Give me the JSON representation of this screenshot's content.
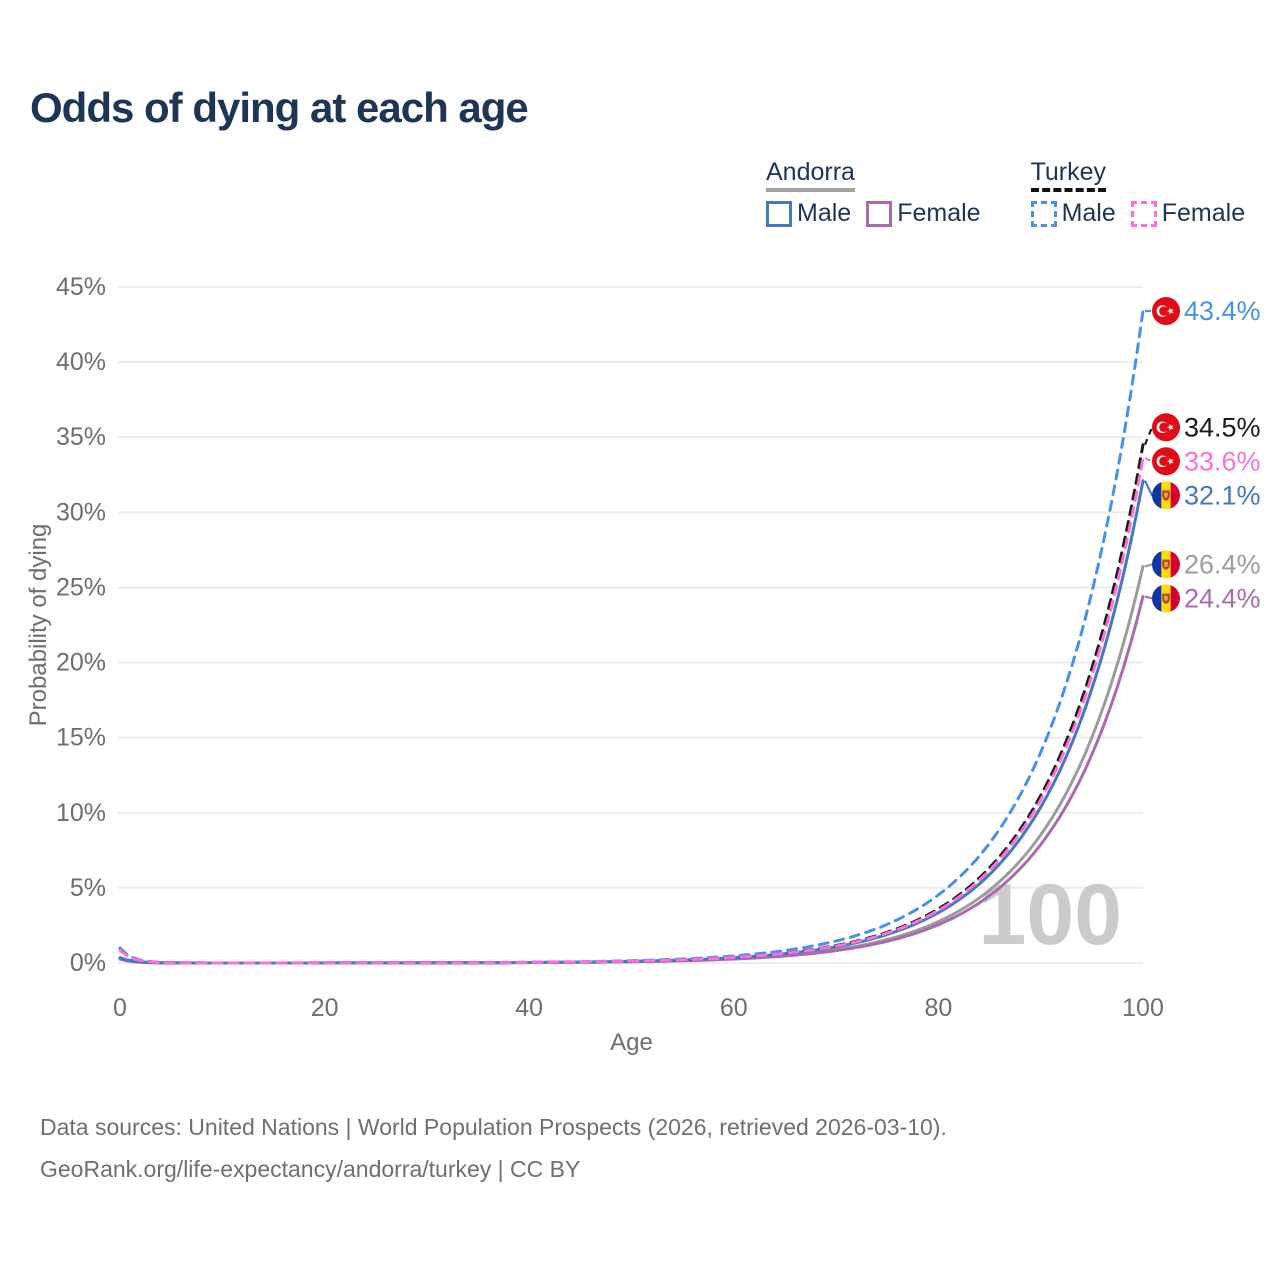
{
  "chart_data": {
    "type": "line",
    "title": "Odds of dying at each age",
    "xlabel": "Age",
    "ylabel": "Probability of dying",
    "x_ticks": [
      "0",
      "20",
      "40",
      "60",
      "80",
      "100"
    ],
    "y_ticks": [
      "0%",
      "5%",
      "10%",
      "15%",
      "20%",
      "25%",
      "30%",
      "35%",
      "40%",
      "45%"
    ],
    "xlim": [
      0,
      100
    ],
    "ylim": [
      0,
      45
    ],
    "grid": "horizontal",
    "legend_position": "top-right",
    "watermark": "100",
    "x": [
      0,
      5,
      10,
      15,
      20,
      25,
      30,
      35,
      40,
      45,
      50,
      55,
      60,
      65,
      70,
      75,
      80,
      85,
      90,
      95,
      100
    ],
    "series": [
      {
        "id": "andorra",
        "name": "Andorra",
        "country": "Andorra",
        "flag": "andorra",
        "color": "#9c9c9c",
        "dash": false,
        "end_label": "26.4%",
        "values_pct": [
          0.3,
          0.006,
          0.001,
          0.0018,
          0.0031,
          0.0055,
          0.0097,
          0.017,
          0.03,
          0.053,
          0.093,
          0.163,
          0.287,
          0.505,
          0.889,
          1.565,
          2.755,
          4.848,
          8.528,
          15.004,
          26.4
        ]
      },
      {
        "id": "andorra-female",
        "name": "Andorra Female",
        "country": "Andorra",
        "flag": "andorra",
        "color": "#aa6bae",
        "dash": false,
        "end_label": "24.4%",
        "values_pct": [
          0.25,
          0.005,
          0.0009,
          0.0016,
          0.0029,
          0.0051,
          0.0089,
          0.0157,
          0.028,
          0.049,
          0.086,
          0.151,
          0.265,
          0.467,
          0.822,
          1.447,
          2.547,
          4.48,
          7.882,
          13.868,
          24.4
        ]
      },
      {
        "id": "andorra-male",
        "name": "Andorra Male",
        "country": "Andorra",
        "flag": "andorra",
        "color": "#4478c2",
        "dash": false,
        "end_label": "32.1%",
        "values_pct": [
          0.35,
          0.007,
          0.0012,
          0.0022,
          0.0038,
          0.0067,
          0.0117,
          0.0207,
          0.036,
          0.064,
          0.113,
          0.198,
          0.349,
          0.614,
          1.081,
          1.903,
          3.35,
          5.894,
          10.369,
          18.244,
          32.1
        ]
      },
      {
        "id": "turkey",
        "name": "Turkey",
        "country": "Turkey",
        "flag": "turkey",
        "color": "#1b1b1b",
        "dash": true,
        "end_label": "34.5%",
        "values_pct": [
          0.95,
          0.016,
          0.0013,
          0.0023,
          0.0041,
          0.0072,
          0.0126,
          0.0223,
          0.039,
          0.069,
          0.121,
          0.213,
          0.375,
          0.66,
          1.162,
          2.046,
          3.601,
          6.335,
          11.145,
          19.608,
          34.5
        ]
      },
      {
        "id": "turkey-male",
        "name": "Turkey Male",
        "country": "Turkey",
        "flag": "turkey",
        "color": "#4690f2",
        "dash": true,
        "end_label": "43.4%",
        "values_pct": [
          1.0,
          0.017,
          0.002,
          0.003,
          0.005,
          0.009,
          0.016,
          0.028,
          0.049,
          0.087,
          0.152,
          0.268,
          0.472,
          0.831,
          1.462,
          2.574,
          4.53,
          7.969,
          14.02,
          24.666,
          43.4
        ]
      },
      {
        "id": "turkey-female",
        "name": "Turkey Female",
        "country": "Turkey",
        "flag": "turkey",
        "color": "#ff6ed8",
        "dash": true,
        "end_label": "33.6%",
        "values_pct": [
          0.85,
          0.015,
          0.0013,
          0.0023,
          0.004,
          0.007,
          0.0123,
          0.0217,
          0.038,
          0.067,
          0.118,
          0.208,
          0.366,
          0.643,
          1.132,
          1.992,
          3.507,
          6.17,
          10.854,
          19.097,
          33.6
        ]
      }
    ]
  },
  "legend": {
    "groups": [
      {
        "id": "andorra",
        "label": "Andorra",
        "underline": "solid",
        "underline_color": "#a3a3a3",
        "items": [
          {
            "id": "andorra-male",
            "label": "Male",
            "color": "#4478c2",
            "dash": false
          },
          {
            "id": "andorra-female",
            "label": "Female",
            "color": "#aa6bae",
            "dash": false
          }
        ]
      },
      {
        "id": "turkey",
        "label": "Turkey",
        "underline": "dashed",
        "underline_color": "#111111",
        "items": [
          {
            "id": "turkey-male",
            "label": "Male",
            "color": "#4690f2",
            "dash": true
          },
          {
            "id": "turkey-female",
            "label": "Female",
            "color": "#ff6ed8",
            "dash": true
          }
        ]
      }
    ]
  },
  "colors": {
    "title": "#1d3557",
    "axis_text": "#6e6e6e",
    "grid": "#ececec",
    "watermark": "#cbcbcb",
    "turkey_flag_red": "#e30a17",
    "andorra_blue": "#1035a5",
    "andorra_yellow": "#fedd00",
    "andorra_red": "#d50032"
  },
  "footer": {
    "line1": "Data sources: United Nations | World Population Prospects (2026, retrieved 2026-03-10).",
    "line2": "GeoRank.org/life-expectancy/andorra/turkey | CC BY"
  }
}
